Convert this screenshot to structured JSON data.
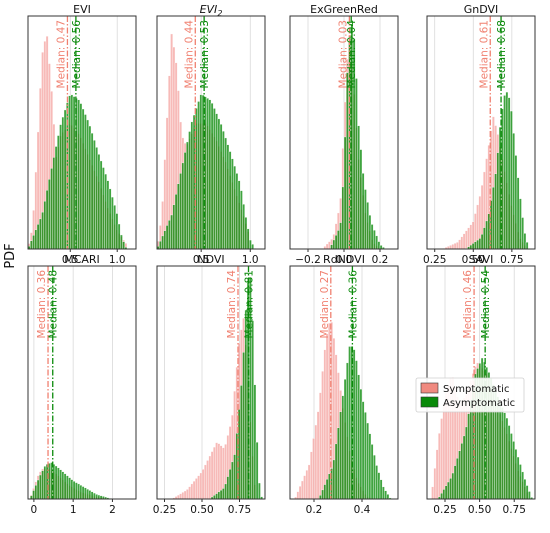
{
  "figure": {
    "ylabel": "PDF"
  },
  "legend": {
    "placement": "right",
    "items": [
      {
        "label": "Symptomatic",
        "color": "#f08a80"
      },
      {
        "label": "Asymptomatic",
        "color": "#0a8a0a"
      }
    ]
  },
  "colors": {
    "symptomatic_hist": "#f4a3a0",
    "asymptomatic_hist": "#0a8a0a",
    "symptomatic_median": "#f08070",
    "asymptomatic_median": "#0a8a0a",
    "axes_edge": "#333333",
    "grid": "#d9d9d9"
  },
  "chart_data": [
    {
      "type": "bar",
      "title": "EVI",
      "xlim": [
        0.05,
        1.2
      ],
      "xticks": [
        0.5,
        1.0
      ],
      "xtick_labels": [
        "0.5",
        "1.0"
      ],
      "grid": true,
      "series": [
        {
          "name": "Symptomatic",
          "median": 0.47,
          "median_label": "Median: 0.47",
          "shape": [
            [
              0.05,
              0.0
            ],
            [
              0.1,
              0.1
            ],
            [
              0.15,
              0.45
            ],
            [
              0.2,
              0.85
            ],
            [
              0.25,
              0.95
            ],
            [
              0.3,
              0.7
            ],
            [
              0.35,
              0.4
            ],
            [
              0.4,
              0.5
            ],
            [
              0.5,
              0.55
            ],
            [
              0.6,
              0.5
            ],
            [
              0.7,
              0.4
            ],
            [
              0.8,
              0.3
            ],
            [
              0.9,
              0.18
            ],
            [
              1.0,
              0.08
            ],
            [
              1.1,
              0.02
            ]
          ]
        },
        {
          "name": "Asymptomatic",
          "median": 0.56,
          "median_label": "Median: 0.56",
          "shape": [
            [
              0.05,
              0.0
            ],
            [
              0.2,
              0.15
            ],
            [
              0.3,
              0.35
            ],
            [
              0.4,
              0.55
            ],
            [
              0.5,
              0.68
            ],
            [
              0.6,
              0.65
            ],
            [
              0.7,
              0.55
            ],
            [
              0.8,
              0.42
            ],
            [
              0.9,
              0.3
            ],
            [
              1.0,
              0.15
            ],
            [
              1.05,
              0.05
            ],
            [
              1.1,
              0.0
            ]
          ]
        }
      ]
    },
    {
      "type": "bar",
      "title": "EVI2",
      "title_base": "EVI",
      "title_sub": "2",
      "xlim": [
        0.05,
        1.15
      ],
      "xticks": [
        0.5,
        1.0
      ],
      "xtick_labels": [
        "0.5",
        "1.0"
      ],
      "grid": true,
      "series": [
        {
          "name": "Symptomatic",
          "median": 0.44,
          "median_label": "Median: 0.44",
          "shape": [
            [
              0.05,
              0.0
            ],
            [
              0.1,
              0.15
            ],
            [
              0.15,
              0.55
            ],
            [
              0.2,
              0.95
            ],
            [
              0.25,
              0.8
            ],
            [
              0.3,
              0.5
            ],
            [
              0.35,
              0.45
            ],
            [
              0.45,
              0.55
            ],
            [
              0.55,
              0.55
            ],
            [
              0.65,
              0.48
            ],
            [
              0.75,
              0.38
            ],
            [
              0.85,
              0.25
            ],
            [
              0.95,
              0.12
            ],
            [
              1.0,
              0.04
            ]
          ]
        },
        {
          "name": "Asymptomatic",
          "median": 0.53,
          "median_label": "Median: 0.53",
          "shape": [
            [
              0.05,
              0.0
            ],
            [
              0.2,
              0.15
            ],
            [
              0.3,
              0.35
            ],
            [
              0.4,
              0.55
            ],
            [
              0.5,
              0.68
            ],
            [
              0.6,
              0.65
            ],
            [
              0.7,
              0.55
            ],
            [
              0.8,
              0.42
            ],
            [
              0.9,
              0.28
            ],
            [
              0.95,
              0.15
            ],
            [
              1.0,
              0.04
            ],
            [
              1.05,
              0.0
            ]
          ]
        }
      ]
    },
    {
      "type": "bar",
      "title": "ExGreenRed",
      "xlim": [
        -0.3,
        0.3
      ],
      "xticks": [
        -0.2,
        0.0,
        0.2
      ],
      "xtick_labels": [
        "−0.2",
        "0.0",
        "0.2"
      ],
      "grid": true,
      "series": [
        {
          "name": "Symptomatic",
          "median": 0.03,
          "median_label": "Median: 0.03",
          "shape": [
            [
              -0.12,
              0.0
            ],
            [
              -0.06,
              0.05
            ],
            [
              -0.02,
              0.2
            ],
            [
              0.0,
              0.55
            ],
            [
              0.02,
              0.85
            ],
            [
              0.03,
              0.95
            ],
            [
              0.05,
              0.75
            ],
            [
              0.08,
              0.4
            ],
            [
              0.12,
              0.15
            ],
            [
              0.16,
              0.03
            ],
            [
              0.2,
              0.0
            ]
          ]
        },
        {
          "name": "Asymptomatic",
          "median": 0.04,
          "median_label": "Median: 0.04",
          "shape": [
            [
              -0.08,
              0.0
            ],
            [
              -0.02,
              0.1
            ],
            [
              0.0,
              0.35
            ],
            [
              0.02,
              0.8
            ],
            [
              0.04,
              1.0
            ],
            [
              0.06,
              0.9
            ],
            [
              0.08,
              0.55
            ],
            [
              0.11,
              0.3
            ],
            [
              0.15,
              0.12
            ],
            [
              0.2,
              0.02
            ],
            [
              0.23,
              0.0
            ]
          ]
        }
      ]
    },
    {
      "type": "bar",
      "title": "GnDVI",
      "xlim": [
        0.2,
        0.9
      ],
      "xticks": [
        0.25,
        0.5,
        0.75
      ],
      "xtick_labels": [
        "0.25",
        "0.50",
        "0.75"
      ],
      "grid": true,
      "series": [
        {
          "name": "Symptomatic",
          "median": 0.61,
          "median_label": "Median: 0.61",
          "shape": [
            [
              0.3,
              0.0
            ],
            [
              0.4,
              0.03
            ],
            [
              0.5,
              0.12
            ],
            [
              0.55,
              0.25
            ],
            [
              0.6,
              0.45
            ],
            [
              0.63,
              0.58
            ],
            [
              0.66,
              0.5
            ],
            [
              0.7,
              0.35
            ],
            [
              0.75,
              0.18
            ],
            [
              0.8,
              0.05
            ],
            [
              0.85,
              0.0
            ]
          ]
        },
        {
          "name": "Asymptomatic",
          "median": 0.68,
          "median_label": "Median: 0.68",
          "shape": [
            [
              0.45,
              0.0
            ],
            [
              0.55,
              0.05
            ],
            [
              0.6,
              0.15
            ],
            [
              0.65,
              0.35
            ],
            [
              0.68,
              0.58
            ],
            [
              0.71,
              0.7
            ],
            [
              0.74,
              0.65
            ],
            [
              0.77,
              0.45
            ],
            [
              0.8,
              0.25
            ],
            [
              0.83,
              0.08
            ],
            [
              0.86,
              0.0
            ]
          ]
        }
      ]
    },
    {
      "type": "bar",
      "title": "MCARI",
      "xlim": [
        -0.15,
        2.6
      ],
      "xticks": [
        0,
        1,
        2
      ],
      "xtick_labels": [
        "0",
        "1",
        "2"
      ],
      "grid": true,
      "series": [
        {
          "name": "Symptomatic",
          "median": 0.36,
          "median_label": "Median: 0.36",
          "shape": [
            [
              -0.1,
              0.0
            ],
            [
              0.0,
              0.05
            ],
            [
              0.1,
              0.1
            ],
            [
              0.2,
              0.13
            ],
            [
              0.35,
              0.14
            ],
            [
              0.5,
              0.12
            ],
            [
              0.7,
              0.09
            ],
            [
              0.9,
              0.06
            ],
            [
              1.2,
              0.03
            ],
            [
              1.6,
              0.01
            ],
            [
              2.0,
              0.0
            ]
          ]
        },
        {
          "name": "Asymptomatic",
          "median": 0.48,
          "median_label": "Median: 0.48",
          "shape": [
            [
              -0.1,
              0.0
            ],
            [
              0.0,
              0.04
            ],
            [
              0.15,
              0.1
            ],
            [
              0.3,
              0.15
            ],
            [
              0.45,
              0.16
            ],
            [
              0.6,
              0.14
            ],
            [
              0.8,
              0.11
            ],
            [
              1.0,
              0.08
            ],
            [
              1.3,
              0.05
            ],
            [
              1.6,
              0.02
            ],
            [
              2.0,
              0.0
            ]
          ]
        }
      ]
    },
    {
      "type": "bar",
      "title": "NDVI",
      "xlim": [
        0.2,
        0.92
      ],
      "xticks": [
        0.25,
        0.5,
        0.75
      ],
      "xtick_labels": [
        "0.25",
        "0.50",
        "0.75"
      ],
      "grid": true,
      "series": [
        {
          "name": "Symptomatic",
          "median": 0.74,
          "median_label": "Median: 0.74",
          "shape": [
            [
              0.3,
              0.0
            ],
            [
              0.4,
              0.04
            ],
            [
              0.5,
              0.12
            ],
            [
              0.6,
              0.25
            ],
            [
              0.65,
              0.22
            ],
            [
              0.7,
              0.35
            ],
            [
              0.75,
              0.7
            ],
            [
              0.78,
              0.8
            ],
            [
              0.8,
              0.6
            ],
            [
              0.83,
              0.25
            ],
            [
              0.86,
              0.0
            ]
          ]
        },
        {
          "name": "Asymptomatic",
          "median": 0.81,
          "median_label": "Median: 0.81",
          "shape": [
            [
              0.55,
              0.0
            ],
            [
              0.65,
              0.05
            ],
            [
              0.72,
              0.2
            ],
            [
              0.77,
              0.55
            ],
            [
              0.8,
              0.92
            ],
            [
              0.82,
              1.0
            ],
            [
              0.84,
              0.75
            ],
            [
              0.86,
              0.35
            ],
            [
              0.88,
              0.08
            ],
            [
              0.9,
              0.0
            ]
          ]
        }
      ]
    },
    {
      "type": "bar",
      "title": "RdNDVI",
      "xlim": [
        0.1,
        0.55
      ],
      "xticks": [
        0.2,
        0.4
      ],
      "xtick_labels": [
        "0.2",
        "0.4"
      ],
      "grid": true,
      "series": [
        {
          "name": "Symptomatic",
          "median": 0.27,
          "median_label": "Median: 0.27",
          "shape": [
            [
              0.12,
              0.0
            ],
            [
              0.18,
              0.15
            ],
            [
              0.22,
              0.4
            ],
            [
              0.25,
              0.7
            ],
            [
              0.27,
              0.8
            ],
            [
              0.29,
              0.65
            ],
            [
              0.32,
              0.4
            ],
            [
              0.35,
              0.2
            ],
            [
              0.38,
              0.08
            ],
            [
              0.42,
              0.01
            ],
            [
              0.45,
              0.0
            ]
          ]
        },
        {
          "name": "Asymptomatic",
          "median": 0.36,
          "median_label": "Median: 0.36",
          "shape": [
            [
              0.22,
              0.0
            ],
            [
              0.28,
              0.15
            ],
            [
              0.32,
              0.45
            ],
            [
              0.35,
              0.68
            ],
            [
              0.37,
              0.65
            ],
            [
              0.4,
              0.45
            ],
            [
              0.43,
              0.3
            ],
            [
              0.46,
              0.15
            ],
            [
              0.49,
              0.05
            ],
            [
              0.52,
              0.0
            ]
          ]
        }
      ]
    },
    {
      "type": "bar",
      "title": "SAVI",
      "xlim": [
        0.12,
        0.9
      ],
      "xticks": [
        0.25,
        0.5,
        0.75
      ],
      "xtick_labels": [
        "0.25",
        "0.50",
        "0.75"
      ],
      "grid": true,
      "series": [
        {
          "name": "Symptomatic",
          "median": 0.46,
          "median_label": "Median: 0.46",
          "shape": [
            [
              0.15,
              0.0
            ],
            [
              0.2,
              0.25
            ],
            [
              0.25,
              0.45
            ],
            [
              0.3,
              0.55
            ],
            [
              0.35,
              0.42
            ],
            [
              0.4,
              0.45
            ],
            [
              0.48,
              0.6
            ],
            [
              0.55,
              0.55
            ],
            [
              0.62,
              0.42
            ],
            [
              0.7,
              0.28
            ],
            [
              0.78,
              0.12
            ],
            [
              0.85,
              0.02
            ]
          ]
        },
        {
          "name": "Asymptomatic",
          "median": 0.54,
          "median_label": "Median: 0.54",
          "shape": [
            [
              0.2,
              0.0
            ],
            [
              0.3,
              0.1
            ],
            [
              0.4,
              0.3
            ],
            [
              0.47,
              0.55
            ],
            [
              0.52,
              0.62
            ],
            [
              0.57,
              0.55
            ],
            [
              0.63,
              0.45
            ],
            [
              0.7,
              0.35
            ],
            [
              0.77,
              0.2
            ],
            [
              0.83,
              0.08
            ],
            [
              0.88,
              0.0
            ]
          ]
        }
      ]
    }
  ]
}
